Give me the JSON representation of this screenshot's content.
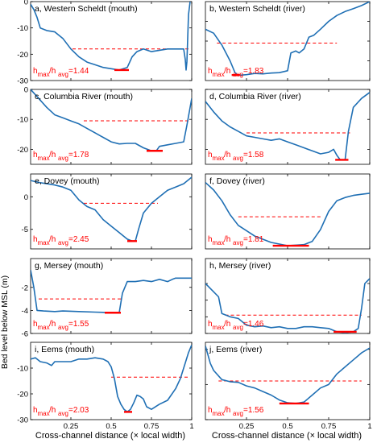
{
  "figure": {
    "ylabel": "Bed level below MSL (m)",
    "xlabel_left": "Cross-channel distance (× local width)",
    "xlabel_right": "Cross-channel distance (× local width)",
    "xticks": [
      0.25,
      0.5,
      0.75,
      1
    ],
    "xtick_labels": [
      "0.25",
      "0.5",
      "0.75",
      "1"
    ],
    "ratio_label_main": "h",
    "ratio_label_sub1": "max",
    "ratio_label_sub2": "avg",
    "colors": {
      "profile": "#1f6fb4",
      "avg_line": "#ff0000",
      "max_marker": "#ff0000",
      "axis": "#000000",
      "text": "#000000",
      "ratio_text": "#ff0000"
    }
  },
  "chart_data": [
    {
      "id": "a",
      "type": "line",
      "title": "a, Western Scheldt (mouth)",
      "ratio": "1.44",
      "xlim": [
        0,
        1
      ],
      "ylim": [
        -30,
        0
      ],
      "yticks": [
        -30,
        -20,
        -10,
        0
      ],
      "h_avg": -18,
      "avg_x": [
        0.26,
        0.98
      ],
      "max_marker": {
        "x": [
          0.52,
          0.61
        ],
        "y": -26
      },
      "profile": [
        [
          0,
          -1
        ],
        [
          0.02,
          -3
        ],
        [
          0.04,
          -6
        ],
        [
          0.06,
          -10
        ],
        [
          0.1,
          -11
        ],
        [
          0.15,
          -11.5
        ],
        [
          0.2,
          -14
        ],
        [
          0.25,
          -18
        ],
        [
          0.3,
          -21
        ],
        [
          0.35,
          -23
        ],
        [
          0.4,
          -24
        ],
        [
          0.45,
          -25
        ],
        [
          0.5,
          -25.5
        ],
        [
          0.55,
          -26
        ],
        [
          0.6,
          -25
        ],
        [
          0.63,
          -21
        ],
        [
          0.66,
          -19
        ],
        [
          0.7,
          -18
        ],
        [
          0.75,
          -19
        ],
        [
          0.8,
          -18.5
        ],
        [
          0.85,
          -18
        ],
        [
          0.9,
          -18
        ],
        [
          0.93,
          -18
        ],
        [
          0.95,
          -18
        ],
        [
          0.96,
          -22
        ],
        [
          0.965,
          -26
        ],
        [
          0.97,
          -23
        ],
        [
          0.98,
          -5
        ],
        [
          0.99,
          0
        ]
      ]
    },
    {
      "id": "b",
      "type": "line",
      "title": "b, Western Scheldt (river)",
      "ratio": "1.83",
      "xlim": [
        0,
        1
      ],
      "ylim": [
        -20,
        0
      ],
      "yticks": [
        -15,
        -10,
        -5
      ],
      "h_avg": -10.5,
      "avg_x": [
        0.07,
        0.8
      ],
      "max_marker": {
        "x": [
          0.16,
          0.21
        ],
        "y": -18.6
      },
      "profile": [
        [
          0,
          -7
        ],
        [
          0.05,
          -8
        ],
        [
          0.1,
          -11
        ],
        [
          0.15,
          -15
        ],
        [
          0.18,
          -18
        ],
        [
          0.2,
          -18.7
        ],
        [
          0.25,
          -18.5
        ],
        [
          0.3,
          -18.2
        ],
        [
          0.35,
          -18.3
        ],
        [
          0.4,
          -18.1
        ],
        [
          0.45,
          -18
        ],
        [
          0.5,
          -17.5
        ],
        [
          0.52,
          -13
        ],
        [
          0.55,
          -12.5
        ],
        [
          0.57,
          -13
        ],
        [
          0.6,
          -12
        ],
        [
          0.63,
          -9
        ],
        [
          0.66,
          -8.5
        ],
        [
          0.7,
          -7
        ],
        [
          0.75,
          -5
        ],
        [
          0.8,
          -3.5
        ],
        [
          0.85,
          -2.5
        ],
        [
          0.9,
          -1.8
        ],
        [
          0.95,
          -1
        ],
        [
          1,
          0
        ]
      ]
    },
    {
      "id": "c",
      "type": "line",
      "title": "c, Columbia River (mouth)",
      "ratio": "1.78",
      "xlim": [
        0,
        1
      ],
      "ylim": [
        -25,
        0
      ],
      "yticks": [
        -20,
        -10,
        0
      ],
      "h_avg": -10.5,
      "avg_x": [
        0.33,
        0.98
      ],
      "max_marker": {
        "x": [
          0.72,
          0.82
        ],
        "y": -20.5
      },
      "profile": [
        [
          0,
          0
        ],
        [
          0.05,
          -3
        ],
        [
          0.1,
          -6
        ],
        [
          0.15,
          -8.5
        ],
        [
          0.2,
          -9.5
        ],
        [
          0.25,
          -10.5
        ],
        [
          0.3,
          -11.5
        ],
        [
          0.35,
          -13
        ],
        [
          0.4,
          -14.5
        ],
        [
          0.45,
          -16
        ],
        [
          0.5,
          -17.5
        ],
        [
          0.55,
          -18.2
        ],
        [
          0.6,
          -18
        ],
        [
          0.65,
          -18
        ],
        [
          0.7,
          -19.5
        ],
        [
          0.75,
          -20.5
        ],
        [
          0.78,
          -20.5
        ],
        [
          0.8,
          -19
        ],
        [
          0.85,
          -18.5
        ],
        [
          0.9,
          -18
        ],
        [
          0.95,
          -17.5
        ],
        [
          0.97,
          -12
        ],
        [
          1,
          -3
        ]
      ]
    },
    {
      "id": "d",
      "type": "line",
      "title": "d, Columbia River (river)",
      "ratio": "1.58",
      "xlim": [
        0,
        1
      ],
      "ylim": [
        -25,
        0
      ],
      "yticks": [
        -20,
        -10,
        0
      ],
      "h_avg": -14.5,
      "avg_x": [
        0.25,
        0.88
      ],
      "max_marker": {
        "x": [
          0.79,
          0.87
        ],
        "y": -23.5
      },
      "profile": [
        [
          0,
          -4
        ],
        [
          0.05,
          -7.5
        ],
        [
          0.1,
          -10.5
        ],
        [
          0.15,
          -12.5
        ],
        [
          0.2,
          -14
        ],
        [
          0.25,
          -15.5
        ],
        [
          0.3,
          -16
        ],
        [
          0.35,
          -16.5
        ],
        [
          0.4,
          -17
        ],
        [
          0.45,
          -16.5
        ],
        [
          0.5,
          -17.5
        ],
        [
          0.55,
          -18.5
        ],
        [
          0.6,
          -19.5
        ],
        [
          0.65,
          -20.5
        ],
        [
          0.7,
          -21.5
        ],
        [
          0.75,
          -21
        ],
        [
          0.78,
          -20
        ],
        [
          0.8,
          -22
        ],
        [
          0.82,
          -23.5
        ],
        [
          0.85,
          -23.5
        ],
        [
          0.87,
          -14
        ],
        [
          0.9,
          -6
        ],
        [
          0.95,
          -3
        ],
        [
          1,
          -1
        ]
      ]
    },
    {
      "id": "e",
      "type": "line",
      "title": "e, Dovey (mouth)",
      "ratio": "2.45",
      "xlim": [
        0,
        1
      ],
      "ylim": [
        -8,
        3.5
      ],
      "yticks": [
        -5,
        0
      ],
      "h_avg": -1,
      "avg_x": [
        0.33,
        0.79
      ],
      "max_marker": {
        "x": [
          0.6,
          0.66
        ],
        "y": -6.8
      },
      "profile": [
        [
          0,
          2.5
        ],
        [
          0.05,
          2.2
        ],
        [
          0.1,
          2
        ],
        [
          0.15,
          1.8
        ],
        [
          0.2,
          1.5
        ],
        [
          0.25,
          1
        ],
        [
          0.3,
          -0.5
        ],
        [
          0.35,
          -1.5
        ],
        [
          0.4,
          -2
        ],
        [
          0.45,
          -3.5
        ],
        [
          0.5,
          -4.5
        ],
        [
          0.55,
          -5.5
        ],
        [
          0.6,
          -6.5
        ],
        [
          0.63,
          -6.8
        ],
        [
          0.65,
          -6.8
        ],
        [
          0.67,
          -5
        ],
        [
          0.7,
          -2.5
        ],
        [
          0.75,
          -1
        ],
        [
          0.8,
          0
        ],
        [
          0.85,
          1
        ],
        [
          0.9,
          1.5
        ],
        [
          0.95,
          2
        ],
        [
          1,
          3
        ]
      ]
    },
    {
      "id": "f",
      "type": "line",
      "title": "f, Dovey (river)",
      "ratio": "1.81",
      "xlim": [
        0,
        1
      ],
      "ylim": [
        -4,
        3
      ],
      "yticks": [],
      "h_avg": -1,
      "avg_x": [
        0.2,
        0.7
      ],
      "max_marker": {
        "x": [
          0.41,
          0.63
        ],
        "y": -3.7
      },
      "profile": [
        [
          0,
          2.2
        ],
        [
          0.05,
          1.5
        ],
        [
          0.1,
          0.5
        ],
        [
          0.15,
          -0.8
        ],
        [
          0.2,
          -1.8
        ],
        [
          0.3,
          -2.8
        ],
        [
          0.4,
          -3.4
        ],
        [
          0.5,
          -3.7
        ],
        [
          0.6,
          -3.6
        ],
        [
          0.65,
          -3.3
        ],
        [
          0.7,
          -2.2
        ],
        [
          0.75,
          -0.5
        ],
        [
          0.8,
          0.5
        ],
        [
          0.85,
          0.8
        ],
        [
          0.9,
          1
        ],
        [
          0.95,
          1.1
        ],
        [
          1,
          1.2
        ]
      ]
    },
    {
      "id": "g",
      "type": "line",
      "title": "g, Mersey (mouth)",
      "ratio": "1.55",
      "xlim": [
        0,
        1
      ],
      "ylim": [
        -6,
        0.5
      ],
      "yticks": [
        -6,
        -4,
        -2
      ],
      "h_avg": -3,
      "avg_x": [
        0.05,
        0.56
      ],
      "max_marker": {
        "x": [
          0.46,
          0.56
        ],
        "y": -4.2
      },
      "profile": [
        [
          0,
          -0.5
        ],
        [
          0.02,
          -2
        ],
        [
          0.04,
          -4
        ],
        [
          0.08,
          -4.05
        ],
        [
          0.15,
          -4.1
        ],
        [
          0.2,
          -4.05
        ],
        [
          0.3,
          -4.1
        ],
        [
          0.4,
          -4.15
        ],
        [
          0.5,
          -4.2
        ],
        [
          0.55,
          -4.2
        ],
        [
          0.57,
          -2.5
        ],
        [
          0.6,
          -1.5
        ],
        [
          0.65,
          -1.5
        ],
        [
          0.7,
          -1.4
        ],
        [
          0.75,
          -1.5
        ],
        [
          0.8,
          -1.3
        ],
        [
          0.85,
          -1.5
        ],
        [
          0.88,
          -1.3
        ],
        [
          0.9,
          -1.2
        ],
        [
          0.95,
          -1.2
        ],
        [
          1,
          -1.2
        ]
      ]
    },
    {
      "id": "h",
      "type": "line",
      "title": "h, Mersey (river)",
      "ratio": "1.46",
      "xlim": [
        0,
        1
      ],
      "ylim": [
        2,
        6.5
      ],
      "yticks": [
        2,
        3,
        4,
        5
      ],
      "h_avg": 3.1,
      "avg_x": [
        0.12,
        0.95
      ],
      "max_marker": {
        "x": [
          0.78,
          0.92
        ],
        "y": 2.1
      },
      "profile": [
        [
          0,
          5
        ],
        [
          0.05,
          4.5
        ],
        [
          0.08,
          4.2
        ],
        [
          0.1,
          3.2
        ],
        [
          0.15,
          3
        ],
        [
          0.2,
          2.9
        ],
        [
          0.25,
          2.5
        ],
        [
          0.3,
          2.4
        ],
        [
          0.35,
          2.45
        ],
        [
          0.4,
          2.35
        ],
        [
          0.45,
          2.4
        ],
        [
          0.5,
          2.3
        ],
        [
          0.55,
          2.3
        ],
        [
          0.6,
          2.4
        ],
        [
          0.65,
          2.4
        ],
        [
          0.7,
          2.35
        ],
        [
          0.75,
          2.3
        ],
        [
          0.8,
          2.1
        ],
        [
          0.85,
          2.05
        ],
        [
          0.9,
          2.1
        ],
        [
          0.93,
          2.3
        ],
        [
          0.95,
          3.5
        ],
        [
          0.97,
          5
        ],
        [
          1,
          5.3
        ]
      ]
    },
    {
      "id": "i",
      "type": "line",
      "title": "i, Eems (mouth)",
      "ratio": "2.03",
      "xlim": [
        0,
        1
      ],
      "ylim": [
        -30,
        0
      ],
      "yticks": [
        -30,
        -20,
        -10
      ],
      "h_avg": -13.5,
      "avg_x": [
        0.5,
        0.98
      ],
      "max_marker": {
        "x": [
          0.58,
          0.63
        ],
        "y": -27
      },
      "profile": [
        [
          0,
          -6.5
        ],
        [
          0.03,
          -6
        ],
        [
          0.06,
          -7.5
        ],
        [
          0.1,
          -8
        ],
        [
          0.13,
          -9
        ],
        [
          0.15,
          -7.5
        ],
        [
          0.2,
          -7.5
        ],
        [
          0.25,
          -7.5
        ],
        [
          0.3,
          -6.5
        ],
        [
          0.35,
          -6.5
        ],
        [
          0.4,
          -6
        ],
        [
          0.45,
          -6.5
        ],
        [
          0.48,
          -7.5
        ],
        [
          0.5,
          -9.5
        ],
        [
          0.52,
          -14
        ],
        [
          0.54,
          -21
        ],
        [
          0.56,
          -24
        ],
        [
          0.58,
          -26
        ],
        [
          0.6,
          -27
        ],
        [
          0.62,
          -26
        ],
        [
          0.64,
          -23.5
        ],
        [
          0.66,
          -20.5
        ],
        [
          0.68,
          -21
        ],
        [
          0.7,
          -22
        ],
        [
          0.72,
          -25
        ],
        [
          0.75,
          -26
        ],
        [
          0.8,
          -24
        ],
        [
          0.85,
          -22.5
        ],
        [
          0.9,
          -18
        ],
        [
          0.93,
          -14
        ],
        [
          0.96,
          -8
        ],
        [
          0.98,
          -4
        ],
        [
          1,
          -1
        ]
      ]
    },
    {
      "id": "j",
      "type": "line",
      "title": "j, Eems (river)",
      "ratio": "1.56",
      "xlim": [
        0,
        1
      ],
      "ylim": [
        -10,
        1
      ],
      "yticks": [
        -10,
        -5,
        0
      ],
      "h_avg": -4.5,
      "avg_x": [
        0.08,
        0.95
      ],
      "max_marker": {
        "x": [
          0.45,
          0.63
        ],
        "y": -7.7
      },
      "profile": [
        [
          0,
          0.5
        ],
        [
          0.03,
          -2
        ],
        [
          0.05,
          -3
        ],
        [
          0.1,
          -4.3
        ],
        [
          0.15,
          -4.6
        ],
        [
          0.2,
          -4.7
        ],
        [
          0.25,
          -5.2
        ],
        [
          0.3,
          -5.5
        ],
        [
          0.35,
          -6
        ],
        [
          0.4,
          -6.5
        ],
        [
          0.45,
          -7.2
        ],
        [
          0.5,
          -7.6
        ],
        [
          0.55,
          -7.7
        ],
        [
          0.6,
          -7.5
        ],
        [
          0.65,
          -6.5
        ],
        [
          0.7,
          -5.5
        ],
        [
          0.75,
          -5
        ],
        [
          0.8,
          -3.5
        ],
        [
          0.85,
          -2.5
        ],
        [
          0.9,
          -1.5
        ],
        [
          0.95,
          -0.5
        ],
        [
          1,
          0.2
        ]
      ]
    }
  ]
}
